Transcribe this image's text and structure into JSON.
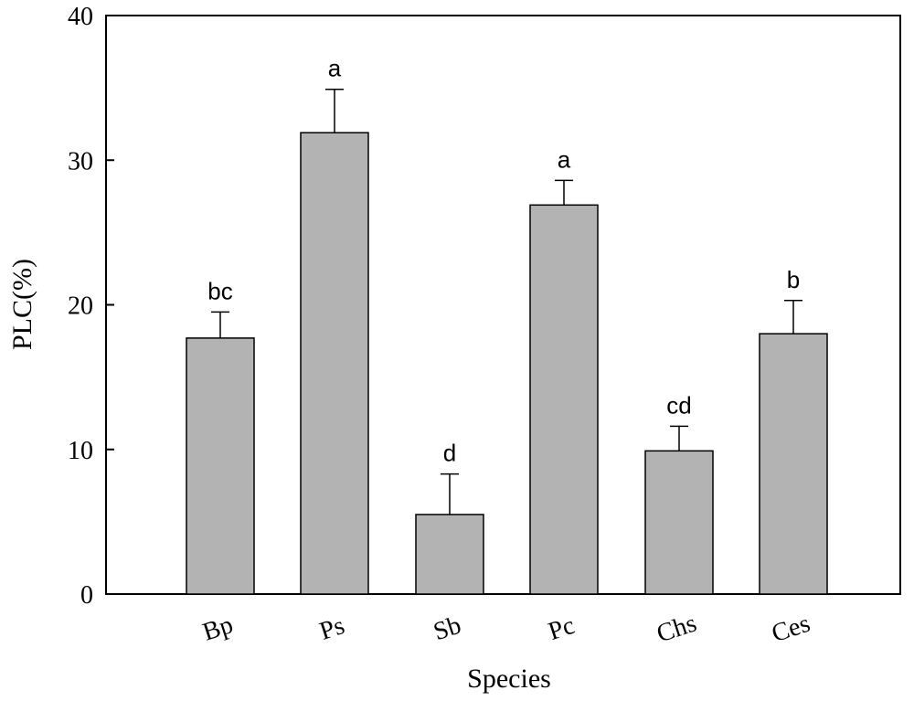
{
  "chart_data": {
    "type": "bar",
    "title": "",
    "xlabel": "Species",
    "ylabel": "PLC(%)",
    "categories": [
      "Bp",
      "Ps",
      "Sb",
      "Pc",
      "Chs",
      "Ces"
    ],
    "values": [
      17.7,
      31.9,
      5.5,
      26.9,
      9.9,
      18.0
    ],
    "errors": [
      1.8,
      3.0,
      2.8,
      1.7,
      1.7,
      2.3
    ],
    "significance_labels": [
      "bc",
      "a",
      "d",
      "a",
      "cd",
      "b"
    ],
    "ylim": [
      0,
      40
    ],
    "yticks": [
      0,
      10,
      20,
      30,
      40
    ],
    "bar_color": "#b3b3b3",
    "grid": false,
    "legend": "none"
  }
}
